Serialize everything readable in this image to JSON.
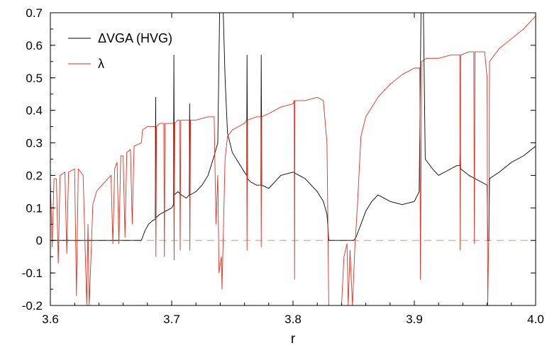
{
  "chart_data": {
    "type": "line",
    "xlabel": "r",
    "ylabel": "",
    "xlim": [
      3.6,
      4.0
    ],
    "ylim": [
      -0.2,
      0.7
    ],
    "x_ticks": [
      3.6,
      3.7,
      3.8,
      3.9,
      4.0
    ],
    "x_tick_labels": [
      "3.6",
      "3.7",
      "3.8",
      "3.9",
      "4.0"
    ],
    "y_ticks": [
      -0.2,
      -0.1,
      0,
      0.1,
      0.2,
      0.3,
      0.4,
      0.5,
      0.6,
      0.7
    ],
    "y_tick_labels": [
      "-0.2",
      "-0.1",
      "0",
      "0.1",
      "0.2",
      "0.3",
      "0.4",
      "0.5",
      "0.6",
      "0.7"
    ],
    "grid": false,
    "legend_position": "top-left",
    "reference_line": {
      "y": 0,
      "style": "dashed",
      "color": "#f0a0a0"
    },
    "series": [
      {
        "name": "ΔVGA (HVG)",
        "color": "#000000",
        "points": [
          [
            3.6,
            0
          ],
          [
            3.675,
            0
          ],
          [
            3.678,
            0.03
          ],
          [
            3.681,
            0.05
          ],
          [
            3.684,
            0.06
          ],
          [
            3.6865,
            0.065
          ],
          [
            3.6868,
            0.44
          ],
          [
            3.6872,
            0.07
          ],
          [
            3.69,
            0.08
          ],
          [
            3.695,
            0.09
          ],
          [
            3.7,
            0.1
          ],
          [
            3.7015,
            0.11
          ],
          [
            3.7018,
            0.57
          ],
          [
            3.7022,
            0.14
          ],
          [
            3.705,
            0.15
          ],
          [
            3.708,
            0.14
          ],
          [
            3.712,
            0.13
          ],
          [
            3.7145,
            0.14
          ],
          [
            3.7148,
            0.42
          ],
          [
            3.7152,
            0.14
          ],
          [
            3.72,
            0.15
          ],
          [
            3.725,
            0.17
          ],
          [
            3.73,
            0.2
          ],
          [
            3.735,
            0.26
          ],
          [
            3.738,
            0.3
          ],
          [
            3.7395,
            0.7
          ],
          [
            3.741,
            0.7
          ],
          [
            3.7425,
            0.7
          ],
          [
            3.744,
            0.5
          ],
          [
            3.746,
            0.33
          ],
          [
            3.75,
            0.27
          ],
          [
            3.755,
            0.24
          ],
          [
            3.76,
            0.21
          ],
          [
            3.7618,
            0.2
          ],
          [
            3.7621,
            0.57
          ],
          [
            3.7625,
            0.19
          ],
          [
            3.765,
            0.18
          ],
          [
            3.77,
            0.17
          ],
          [
            3.7735,
            0.17
          ],
          [
            3.7738,
            0.57
          ],
          [
            3.7742,
            0.17
          ],
          [
            3.78,
            0.16
          ],
          [
            3.79,
            0.2
          ],
          [
            3.8,
            0.21
          ],
          [
            3.805,
            0.2
          ],
          [
            3.81,
            0.19
          ],
          [
            3.815,
            0.17
          ],
          [
            3.82,
            0.15
          ],
          [
            3.825,
            0.12
          ],
          [
            3.828,
            0.08
          ],
          [
            3.8295,
            0
          ],
          [
            3.85,
            0
          ],
          [
            3.852,
            0.01
          ],
          [
            3.855,
            0.04
          ],
          [
            3.86,
            0.09
          ],
          [
            3.865,
            0.12
          ],
          [
            3.87,
            0.14
          ],
          [
            3.875,
            0.13
          ],
          [
            3.88,
            0.12
          ],
          [
            3.89,
            0.11
          ],
          [
            3.9,
            0.12
          ],
          [
            3.904,
            0.15
          ],
          [
            3.9055,
            0.7
          ],
          [
            3.9075,
            0.7
          ],
          [
            3.909,
            0.25
          ],
          [
            3.915,
            0.22
          ],
          [
            3.92,
            0.2
          ],
          [
            3.925,
            0.21
          ],
          [
            3.93,
            0.22
          ],
          [
            3.935,
            0.23
          ],
          [
            3.9375,
            0.23
          ],
          [
            3.9378,
            0.3
          ],
          [
            3.9382,
            0.22
          ],
          [
            3.945,
            0.2
          ],
          [
            3.95,
            0.19
          ],
          [
            3.955,
            0.18
          ],
          [
            3.96,
            0.17
          ],
          [
            3.9605,
            0
          ],
          [
            3.9615,
            0
          ],
          [
            3.962,
            0.19
          ],
          [
            3.97,
            0.21
          ],
          [
            3.98,
            0.24
          ],
          [
            3.99,
            0.26
          ],
          [
            4.0,
            0.29
          ]
        ]
      },
      {
        "name": "λ",
        "color": "#e03020",
        "points": [
          [
            3.6,
            0.18
          ],
          [
            3.6015,
            -0.02
          ],
          [
            3.603,
            0.19
          ],
          [
            3.605,
            0.19
          ],
          [
            3.6065,
            -0.07
          ],
          [
            3.608,
            0.2
          ],
          [
            3.612,
            0.21
          ],
          [
            3.6135,
            -0.04
          ],
          [
            3.615,
            0.21
          ],
          [
            3.62,
            0.22
          ],
          [
            3.6215,
            -0.17
          ],
          [
            3.623,
            0.22
          ],
          [
            3.627,
            0.2
          ],
          [
            3.63,
            -0.2
          ],
          [
            3.631,
            0.05
          ],
          [
            3.632,
            -0.2
          ],
          [
            3.6335,
            -0.05
          ],
          [
            3.635,
            0.11
          ],
          [
            3.638,
            0.15
          ],
          [
            3.64,
            0.16
          ],
          [
            3.645,
            0.18
          ],
          [
            3.65,
            0.2
          ],
          [
            3.6515,
            -0.01
          ],
          [
            3.653,
            0.22
          ],
          [
            3.655,
            0.24
          ],
          [
            3.6565,
            -0.01
          ],
          [
            3.658,
            0.26
          ],
          [
            3.66,
            0.26
          ],
          [
            3.6615,
            0.01
          ],
          [
            3.663,
            0.27
          ],
          [
            3.666,
            0.28
          ],
          [
            3.6675,
            0.05
          ],
          [
            3.669,
            0.29
          ],
          [
            3.675,
            0.3
          ],
          [
            3.676,
            0.34
          ],
          [
            3.68,
            0.35
          ],
          [
            3.685,
            0.35
          ],
          [
            3.6865,
            0.35
          ],
          [
            3.687,
            -0.05
          ],
          [
            3.6875,
            0.35
          ],
          [
            3.69,
            0.36
          ],
          [
            3.6935,
            0.36
          ],
          [
            3.694,
            -0.05
          ],
          [
            3.6945,
            0.36
          ],
          [
            3.7,
            0.36
          ],
          [
            3.7015,
            0.36
          ],
          [
            3.702,
            -0.06
          ],
          [
            3.7025,
            0.36
          ],
          [
            3.705,
            0.37
          ],
          [
            3.7065,
            0.37
          ],
          [
            3.707,
            -0.03
          ],
          [
            3.7075,
            0.37
          ],
          [
            3.712,
            0.37
          ],
          [
            3.7145,
            0.37
          ],
          [
            3.715,
            -0.03
          ],
          [
            3.7155,
            0.37
          ],
          [
            3.72,
            0.37
          ],
          [
            3.73,
            0.38
          ],
          [
            3.735,
            0.38
          ],
          [
            3.7365,
            0.05
          ],
          [
            3.738,
            0.2
          ],
          [
            3.739,
            -0.1
          ],
          [
            3.741,
            -0.05
          ],
          [
            3.7415,
            -0.15
          ],
          [
            3.744,
            0.25
          ],
          [
            3.746,
            0.32
          ],
          [
            3.75,
            0.34
          ],
          [
            3.755,
            0.35
          ],
          [
            3.76,
            0.36
          ],
          [
            3.7618,
            0.37
          ],
          [
            3.7621,
            -0.03
          ],
          [
            3.7625,
            0.37
          ],
          [
            3.77,
            0.38
          ],
          [
            3.7735,
            0.38
          ],
          [
            3.7738,
            -0.02
          ],
          [
            3.7742,
            0.38
          ],
          [
            3.78,
            0.39
          ],
          [
            3.79,
            0.41
          ],
          [
            3.8,
            0.42
          ],
          [
            3.801,
            0.43
          ],
          [
            3.8013,
            -0.12
          ],
          [
            3.8016,
            0.43
          ],
          [
            3.81,
            0.43
          ],
          [
            3.82,
            0.44
          ],
          [
            3.825,
            0.43
          ],
          [
            3.828,
            0.3
          ],
          [
            3.8295,
            -0.2
          ],
          [
            3.84,
            -0.2
          ],
          [
            3.842,
            -0.05
          ],
          [
            3.8445,
            -0.01
          ],
          [
            3.8455,
            -0.2
          ],
          [
            3.847,
            -0.03
          ],
          [
            3.849,
            -0.2
          ],
          [
            3.851,
            -0.02
          ],
          [
            3.853,
            0.1
          ],
          [
            3.856,
            0.32
          ],
          [
            3.86,
            0.38
          ],
          [
            3.865,
            0.41
          ],
          [
            3.87,
            0.44
          ],
          [
            3.88,
            0.48
          ],
          [
            3.89,
            0.51
          ],
          [
            3.9,
            0.53
          ],
          [
            3.9045,
            0.53
          ],
          [
            3.905,
            -0.12
          ],
          [
            3.906,
            0.55
          ],
          [
            3.91,
            0.56
          ],
          [
            3.92,
            0.56
          ],
          [
            3.93,
            0.57
          ],
          [
            3.9375,
            0.57
          ],
          [
            3.9378,
            -0.03
          ],
          [
            3.9382,
            0.57
          ],
          [
            3.945,
            0.58
          ],
          [
            3.949,
            0.58
          ],
          [
            3.9495,
            -0.01
          ],
          [
            3.95,
            0.58
          ],
          [
            3.958,
            0.58
          ],
          [
            3.96,
            0.5
          ],
          [
            3.9605,
            -0.2
          ],
          [
            3.9615,
            0.05
          ],
          [
            3.962,
            0.55
          ],
          [
            3.97,
            0.59
          ],
          [
            3.98,
            0.62
          ],
          [
            3.99,
            0.65
          ],
          [
            4.0,
            0.69
          ]
        ]
      }
    ]
  }
}
